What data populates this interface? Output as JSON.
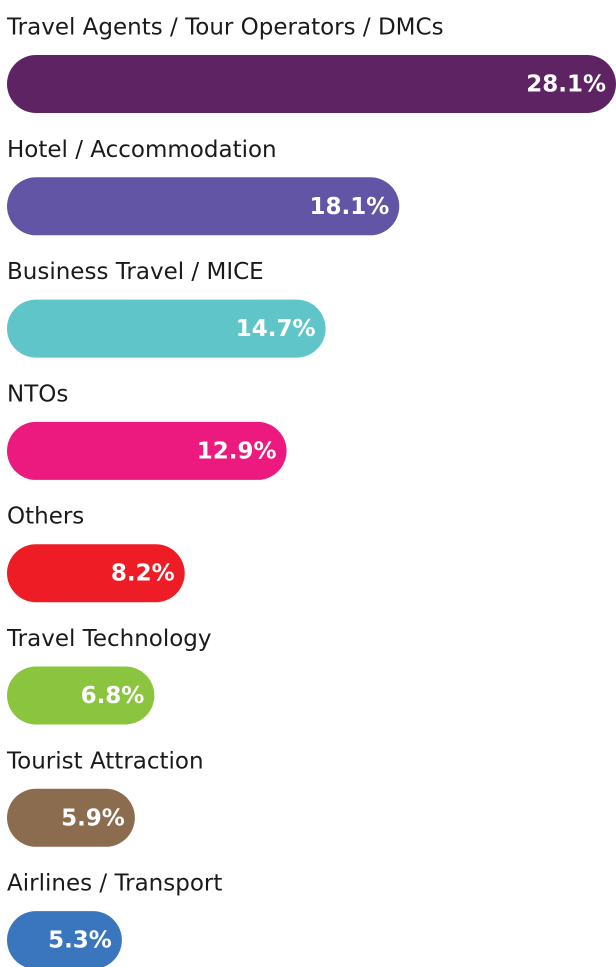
{
  "chart_data": {
    "type": "hbar",
    "categories": [
      "Travel Agents / Tour Operators / DMCs",
      "Hotel / Accommodation",
      "Business Travel / MICE",
      "NTOs",
      "Others",
      "Travel Technology",
      "Tourist Attraction",
      "Airlines / Transport"
    ],
    "values": [
      28.1,
      18.1,
      14.7,
      12.9,
      8.2,
      6.8,
      5.9,
      5.3
    ],
    "value_labels": [
      "28.1%",
      "18.1%",
      "14.7%",
      "12.9%",
      "8.2%",
      "6.8%",
      "5.9%",
      "5.3%"
    ],
    "colors": [
      "#5e2362",
      "#6255a5",
      "#5fc5c9",
      "#ec1a7e",
      "#ee1c25",
      "#8bc43f",
      "#8b6c4f",
      "#3a76bd"
    ],
    "xlim": [
      0,
      28.1
    ]
  }
}
